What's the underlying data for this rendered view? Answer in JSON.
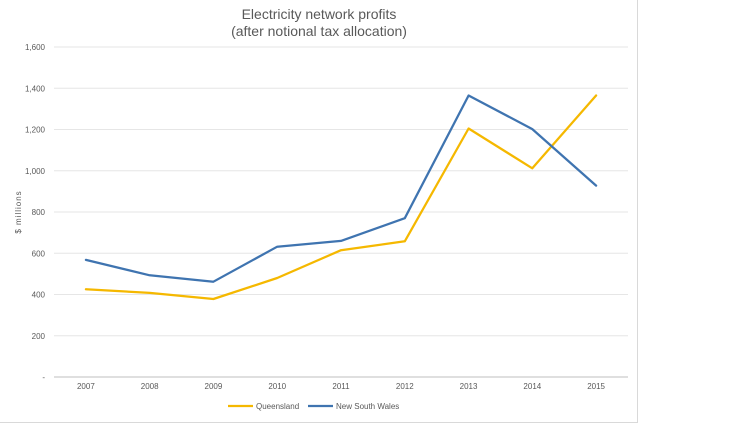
{
  "chart_data": {
    "type": "line",
    "title": "Electricity network profits",
    "subtitle": "(after notional tax allocation)",
    "xlabel": "",
    "ylabel": "$ millions",
    "categories": [
      "2007",
      "2008",
      "2009",
      "2010",
      "2011",
      "2012",
      "2013",
      "2014",
      "2015"
    ],
    "ylim": [
      0,
      1600
    ],
    "yticks": [
      0,
      200,
      400,
      600,
      800,
      1000,
      1200,
      1400,
      1600
    ],
    "ytick_labels": [
      "-",
      "200",
      "400",
      "600",
      "800",
      "1,000",
      "1,200",
      "1,400",
      "1,600"
    ],
    "grid": true,
    "legend_position": "bottom",
    "series": [
      {
        "name": "Queensland",
        "color": "#f5b800",
        "values": [
          425,
          408,
          378,
          480,
          615,
          658,
          1205,
          1012,
          1365
        ]
      },
      {
        "name": "New South Wales",
        "color": "#3f74b0",
        "values": [
          568,
          493,
          462,
          632,
          660,
          770,
          1365,
          1202,
          928
        ]
      }
    ]
  }
}
